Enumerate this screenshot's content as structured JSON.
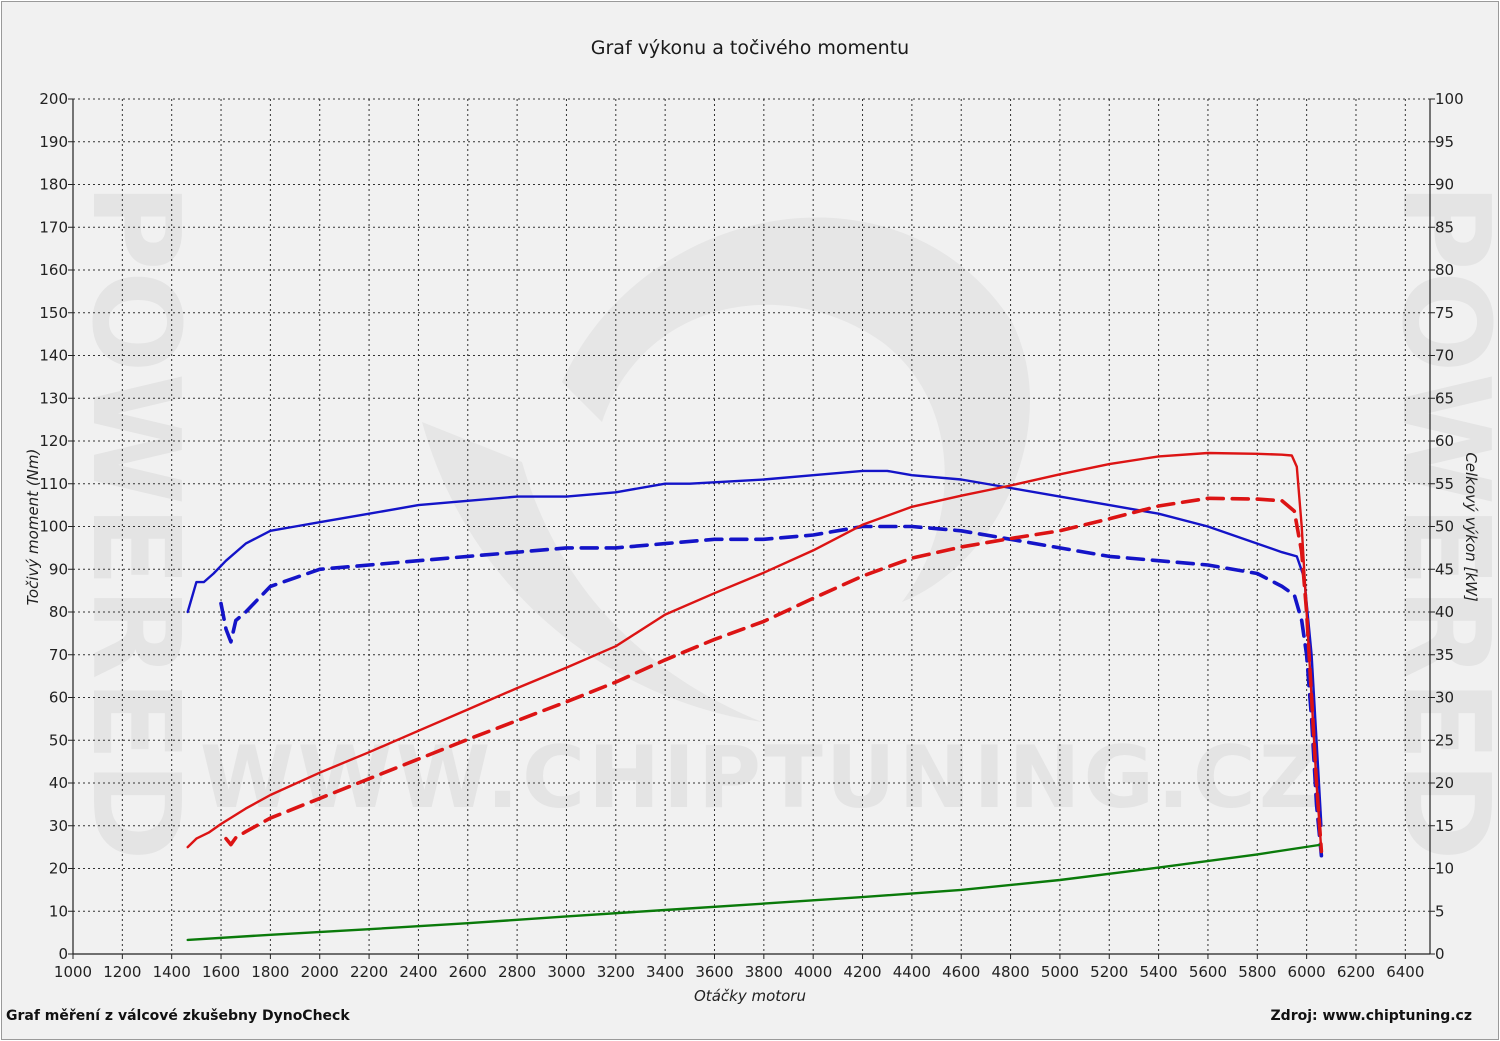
{
  "chart_data": {
    "type": "line",
    "title": "Graf výkonu a točivého momentu",
    "xlabel": "Otáčky motoru",
    "ylabel_left": "Točivý moment (Nm)",
    "ylabel_right": "Celkový výkon [kW]",
    "footer_left": "Graf měření z válcové zkušebny DynoCheck",
    "footer_right": "Zdroj: www.chiptuning.cz",
    "watermark_text": "WWW.CHIPTUNING.CZ",
    "watermark_side": "POWERED",
    "xlim": [
      1000,
      6500
    ],
    "ylim_left": [
      0,
      200
    ],
    "ylim_right": [
      0,
      100
    ],
    "x_ticks": [
      1000,
      1200,
      1400,
      1600,
      1800,
      2000,
      2200,
      2400,
      2600,
      2800,
      3000,
      3200,
      3400,
      3600,
      3800,
      4000,
      4200,
      4400,
      4600,
      4800,
      5000,
      5200,
      5400,
      5600,
      5800,
      6000,
      6200,
      6400
    ],
    "y_ticks_left": [
      0,
      10,
      20,
      30,
      40,
      50,
      60,
      70,
      80,
      90,
      100,
      110,
      120,
      130,
      140,
      150,
      160,
      170,
      180,
      190,
      200
    ],
    "y_ticks_right": [
      0,
      5,
      10,
      15,
      20,
      25,
      30,
      35,
      40,
      45,
      50,
      55,
      60,
      65,
      70,
      75,
      80,
      85,
      90,
      95,
      100
    ],
    "grid": true,
    "colors": {
      "torque": "#1414c8",
      "power": "#dc1414",
      "loss": "#0a7a0a",
      "grid": "#333333"
    },
    "series": [
      {
        "key": "torque_tuned",
        "axis": "left",
        "style": "solid",
        "color": "#1414c8",
        "x": [
          1465,
          1500,
          1530,
          1570,
          1620,
          1700,
          1800,
          1900,
          2000,
          2200,
          2400,
          2600,
          2800,
          3000,
          3200,
          3400,
          3500,
          3800,
          4000,
          4200,
          4300,
          4400,
          4600,
          4800,
          5000,
          5200,
          5400,
          5600,
          5800,
          5900,
          5960,
          5990,
          6020,
          6040,
          6060
        ],
        "y": [
          80,
          87,
          87,
          89,
          92,
          96,
          99,
          100,
          101,
          103,
          105,
          106,
          107,
          107,
          108,
          110,
          110,
          111,
          112,
          113,
          113,
          112,
          111,
          109,
          107,
          105,
          103,
          100,
          96,
          94,
          93,
          88,
          70,
          50,
          30
        ]
      },
      {
        "key": "torque_stock",
        "axis": "left",
        "style": "dashed",
        "color": "#1414c8",
        "x": [
          1600,
          1620,
          1640,
          1660,
          1700,
          1750,
          1800,
          1900,
          2000,
          2200,
          2400,
          2600,
          2800,
          3000,
          3200,
          3400,
          3600,
          3800,
          4000,
          4200,
          4400,
          4600,
          4800,
          5000,
          5200,
          5400,
          5600,
          5800,
          5900,
          5950,
          5980,
          6000,
          6020,
          6040,
          6060
        ],
        "y": [
          82,
          76,
          73,
          78,
          80,
          83,
          86,
          88,
          90,
          91,
          92,
          93,
          94,
          95,
          95,
          96,
          97,
          97,
          98,
          100,
          100,
          99,
          97,
          95,
          93,
          92,
          91,
          89,
          86,
          84,
          78,
          70,
          55,
          35,
          23
        ]
      },
      {
        "key": "power_tuned",
        "axis": "right",
        "style": "solid",
        "color": "#dc1414",
        "x": [
          1465,
          1500,
          1550,
          1600,
          1700,
          1800,
          2000,
          2200,
          2400,
          2600,
          2800,
          3000,
          3200,
          3400,
          3600,
          3800,
          4000,
          4200,
          4400,
          4600,
          4800,
          5000,
          5200,
          5400,
          5600,
          5800,
          5900,
          5940,
          5960,
          5980,
          6000,
          6020,
          6040,
          6060
        ],
        "y": [
          12.5,
          13.5,
          14.2,
          15.2,
          17,
          18.6,
          21.2,
          23.6,
          26.1,
          28.6,
          31.1,
          33.5,
          36,
          39.7,
          42.2,
          44.6,
          47.2,
          50.2,
          52.3,
          53.6,
          54.8,
          56.1,
          57.3,
          58.2,
          58.6,
          58.5,
          58.4,
          58.3,
          57,
          50,
          40,
          30,
          20,
          12
        ]
      },
      {
        "key": "power_stock",
        "axis": "right",
        "style": "dashed",
        "color": "#dc1414",
        "x": [
          1620,
          1640,
          1660,
          1700,
          1800,
          2000,
          2200,
          2400,
          2600,
          2800,
          3000,
          3200,
          3400,
          3600,
          3800,
          4000,
          4200,
          4400,
          4600,
          4800,
          5000,
          5200,
          5400,
          5600,
          5800,
          5900,
          5950,
          5980,
          6000,
          6020,
          6040,
          6060
        ],
        "y": [
          13.5,
          12.8,
          13.6,
          14.3,
          15.9,
          18.2,
          20.5,
          22.8,
          25.1,
          27.3,
          29.5,
          31.8,
          34.4,
          36.8,
          38.9,
          41.6,
          44.2,
          46.3,
          47.6,
          48.6,
          49.5,
          50.9,
          52.4,
          53.3,
          53.2,
          53,
          51.8,
          47,
          40,
          30,
          20,
          12
        ]
      },
      {
        "key": "losses",
        "axis": "left",
        "style": "solid",
        "color": "#0a7a0a",
        "x": [
          1465,
          1800,
          2200,
          2600,
          3000,
          3400,
          3800,
          4200,
          4600,
          5000,
          5400,
          5800,
          6050
        ],
        "y": [
          3.3,
          4.5,
          5.8,
          7.2,
          8.8,
          10.3,
          11.8,
          13.3,
          15,
          17.3,
          20.2,
          23.3,
          25.5
        ]
      }
    ]
  }
}
